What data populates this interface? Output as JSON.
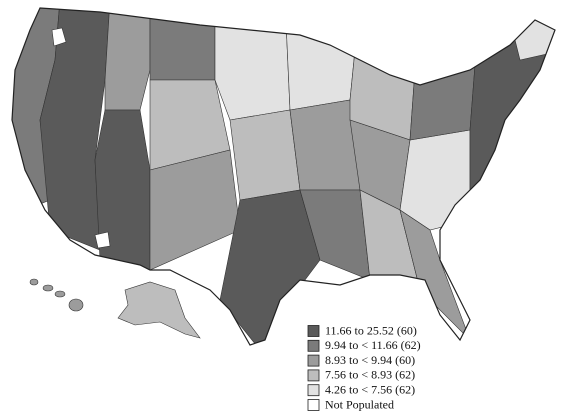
{
  "legend": {
    "items": [
      {
        "label": "11.66 to 25.52 (60)",
        "color": "#5a5a5a"
      },
      {
        "label": "9.94 to < 11.66 (62)",
        "color": "#7b7b7b"
      },
      {
        "label": "8.93 to < 9.94 (60)",
        "color": "#9c9c9c"
      },
      {
        "label": "7.56 to < 8.93 (62)",
        "color": "#bdbdbd"
      },
      {
        "label": "4.26 to < 7.56 (62)",
        "color": "#e2e2e2"
      },
      {
        "label": "Not Populated",
        "color": "#ffffff"
      }
    ]
  }
}
